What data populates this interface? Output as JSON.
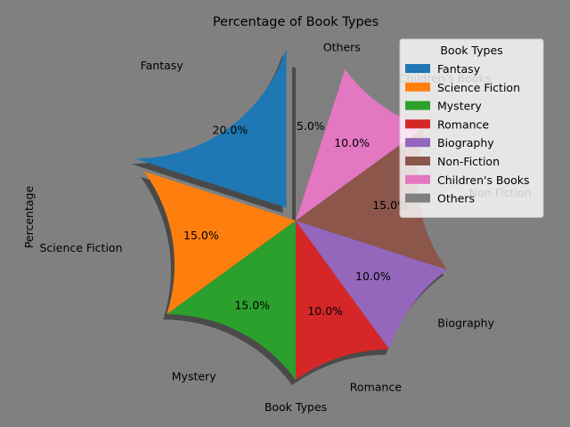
{
  "chart_data": {
    "type": "pie",
    "title": "Percentage of Book Types",
    "xlabel": "Book Types",
    "ylabel": "Percentage",
    "categories": [
      "Fantasy",
      "Science Fiction",
      "Mystery",
      "Romance",
      "Biography",
      "Non-Fiction",
      "Children's Books",
      "Others"
    ],
    "values": [
      20,
      15,
      15,
      10,
      10,
      15,
      10,
      5
    ],
    "pct_labels": [
      "20.0%",
      "15.0%",
      "15.0%",
      "10.0%",
      "10.0%",
      "15.0%",
      "10.0%",
      "5.0%"
    ],
    "colors": [
      "#1f77b4",
      "#ff7f0e",
      "#2ca02c",
      "#d62728",
      "#9467bd",
      "#8c564b",
      "#e377c2",
      "#7f7f7f"
    ],
    "exploded": [
      "Fantasy"
    ],
    "start_angle_deg": 90,
    "shadow": true,
    "legend": {
      "title": "Book Types",
      "placement": "top-right"
    }
  }
}
